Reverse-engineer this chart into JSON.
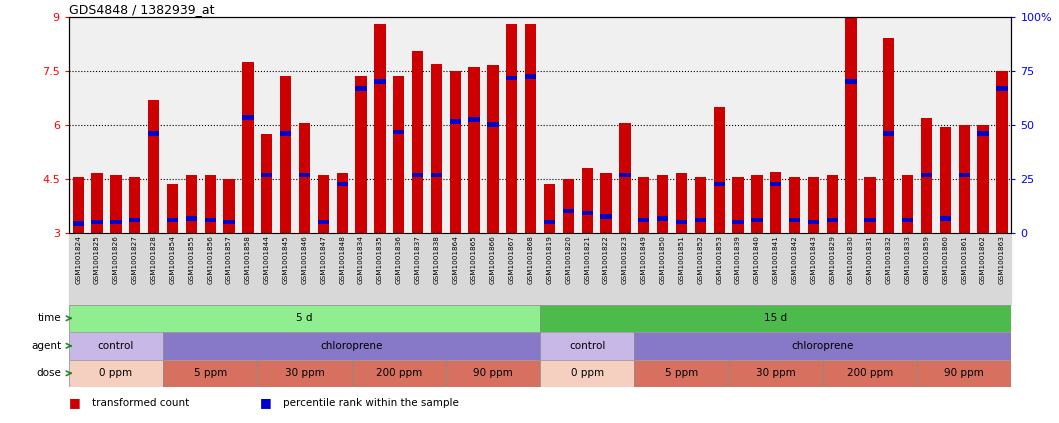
{
  "title": "GDS4848 / 1382939_at",
  "samples": [
    "GSM1001824",
    "GSM1001825",
    "GSM1001826",
    "GSM1001827",
    "GSM1001828",
    "GSM1001854",
    "GSM1001855",
    "GSM1001856",
    "GSM1001857",
    "GSM1001858",
    "GSM1001844",
    "GSM1001845",
    "GSM1001846",
    "GSM1001847",
    "GSM1001848",
    "GSM1001834",
    "GSM1001835",
    "GSM1001836",
    "GSM1001837",
    "GSM1001838",
    "GSM1001864",
    "GSM1001865",
    "GSM1001866",
    "GSM1001867",
    "GSM1001868",
    "GSM1001819",
    "GSM1001820",
    "GSM1001821",
    "GSM1001822",
    "GSM1001823",
    "GSM1001849",
    "GSM1001850",
    "GSM1001851",
    "GSM1001852",
    "GSM1001853",
    "GSM1001839",
    "GSM1001840",
    "GSM1001841",
    "GSM1001842",
    "GSM1001843",
    "GSM1001829",
    "GSM1001830",
    "GSM1001831",
    "GSM1001832",
    "GSM1001833",
    "GSM1001859",
    "GSM1001860",
    "GSM1001861",
    "GSM1001862",
    "GSM1001863"
  ],
  "bar_values": [
    4.55,
    4.65,
    4.6,
    4.55,
    6.7,
    4.35,
    4.6,
    4.6,
    4.5,
    7.75,
    5.75,
    7.35,
    6.05,
    4.6,
    4.65,
    7.35,
    8.8,
    7.35,
    8.05,
    7.7,
    7.5,
    7.6,
    7.65,
    8.8,
    8.8,
    4.35,
    4.5,
    4.8,
    4.65,
    6.05,
    4.55,
    4.6,
    4.65,
    4.55,
    6.5,
    4.55,
    4.6,
    4.7,
    4.55,
    4.55,
    4.6,
    9.9,
    4.55,
    8.4,
    4.6,
    6.2,
    5.95,
    6.0,
    6.0,
    7.5
  ],
  "percentile_values": [
    3.25,
    3.3,
    3.3,
    3.35,
    5.75,
    3.35,
    3.4,
    3.35,
    3.3,
    6.2,
    4.6,
    5.75,
    4.6,
    3.3,
    4.35,
    7.0,
    7.2,
    5.8,
    4.6,
    4.6,
    6.1,
    6.15,
    6.0,
    7.3,
    7.35,
    3.3,
    3.6,
    3.55,
    3.45,
    4.6,
    3.35,
    3.4,
    3.3,
    3.35,
    4.35,
    3.3,
    3.35,
    4.35,
    3.35,
    3.3,
    3.35,
    7.2,
    3.35,
    5.75,
    3.35,
    4.6,
    3.4,
    4.6,
    5.75,
    7.0
  ],
  "ylim": [
    3.0,
    9.0
  ],
  "yticks": [
    3,
    4.5,
    6,
    7.5,
    9
  ],
  "ytick_labels": [
    "3",
    "4.5",
    "6",
    "7.5",
    "9"
  ],
  "right_yticks": [
    0,
    25,
    50,
    75,
    100
  ],
  "right_ytick_labels": [
    "0",
    "25",
    "50",
    "75",
    "100%"
  ],
  "bar_color": "#cc0000",
  "percentile_color": "#0000cc",
  "time_row": {
    "label": "time",
    "segments": [
      {
        "text": "5 d",
        "start": 0,
        "end": 25,
        "color": "#90ee90"
      },
      {
        "text": "15 d",
        "start": 25,
        "end": 50,
        "color": "#4cbb4c"
      }
    ]
  },
  "agent_row": {
    "label": "agent",
    "segments": [
      {
        "text": "control",
        "start": 0,
        "end": 5,
        "color": "#c8b8e8"
      },
      {
        "text": "chloroprene",
        "start": 5,
        "end": 25,
        "color": "#8878c8"
      },
      {
        "text": "control",
        "start": 25,
        "end": 30,
        "color": "#c8b8e8"
      },
      {
        "text": "chloroprene",
        "start": 30,
        "end": 50,
        "color": "#8878c8"
      }
    ]
  },
  "dose_row": {
    "label": "dose",
    "segments": [
      {
        "text": "0 ppm",
        "start": 0,
        "end": 5,
        "color": "#f5d0c0"
      },
      {
        "text": "5 ppm",
        "start": 5,
        "end": 10,
        "color": "#d87060"
      },
      {
        "text": "30 ppm",
        "start": 10,
        "end": 15,
        "color": "#d87060"
      },
      {
        "text": "200 ppm",
        "start": 15,
        "end": 20,
        "color": "#d87060"
      },
      {
        "text": "90 ppm",
        "start": 20,
        "end": 25,
        "color": "#d87060"
      },
      {
        "text": "0 ppm",
        "start": 25,
        "end": 30,
        "color": "#f5d0c0"
      },
      {
        "text": "5 ppm",
        "start": 30,
        "end": 35,
        "color": "#d87060"
      },
      {
        "text": "30 ppm",
        "start": 35,
        "end": 40,
        "color": "#d87060"
      },
      {
        "text": "200 ppm",
        "start": 40,
        "end": 45,
        "color": "#d87060"
      },
      {
        "text": "90 ppm",
        "start": 45,
        "end": 50,
        "color": "#d87060"
      }
    ]
  },
  "legend_items": [
    {
      "label": "transformed count",
      "color": "#cc0000"
    },
    {
      "label": "percentile rank within the sample",
      "color": "#0000cc"
    }
  ],
  "bg_color": "#ffffff"
}
